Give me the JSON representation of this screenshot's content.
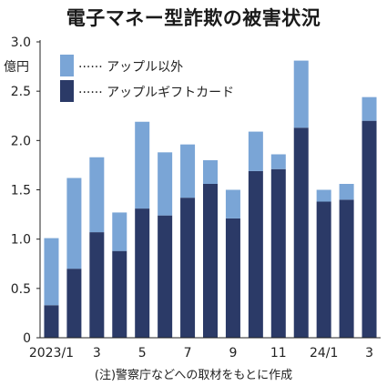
{
  "chart_data": {
    "type": "bar",
    "stacked": true,
    "title": "電子マネー型詐欺の被害状況",
    "ylabel": "億円",
    "ylim": [
      0,
      3.0
    ],
    "yticks": [
      "0",
      "0.5",
      "1.0",
      "1.5",
      "2.0",
      "2.5",
      "3.0"
    ],
    "categories": [
      "2023/1",
      "2",
      "3",
      "4",
      "5",
      "6",
      "7",
      "8",
      "9",
      "10",
      "11",
      "12",
      "24/1",
      "2",
      "3"
    ],
    "xtick_labels": [
      "2023/1",
      "",
      "3",
      "",
      "5",
      "",
      "7",
      "",
      "9",
      "",
      "11",
      "",
      "24/1",
      "",
      "3"
    ],
    "series": [
      {
        "name": "アップルギフトカード",
        "color": "#2b3a67",
        "values": [
          0.33,
          0.7,
          1.07,
          0.88,
          1.31,
          1.24,
          1.42,
          1.56,
          1.21,
          1.69,
          1.71,
          2.13,
          1.38,
          1.4,
          2.2
        ]
      },
      {
        "name": "アップル以外",
        "color": "#7aa5d6",
        "values": [
          0.68,
          0.92,
          0.76,
          0.39,
          0.88,
          0.64,
          0.54,
          0.24,
          0.29,
          0.4,
          0.15,
          0.68,
          0.12,
          0.16,
          0.24
        ]
      }
    ],
    "legend_position": "top-left",
    "grid": false
  },
  "footnote": "(注)警察庁などへの取材をもとに作成"
}
